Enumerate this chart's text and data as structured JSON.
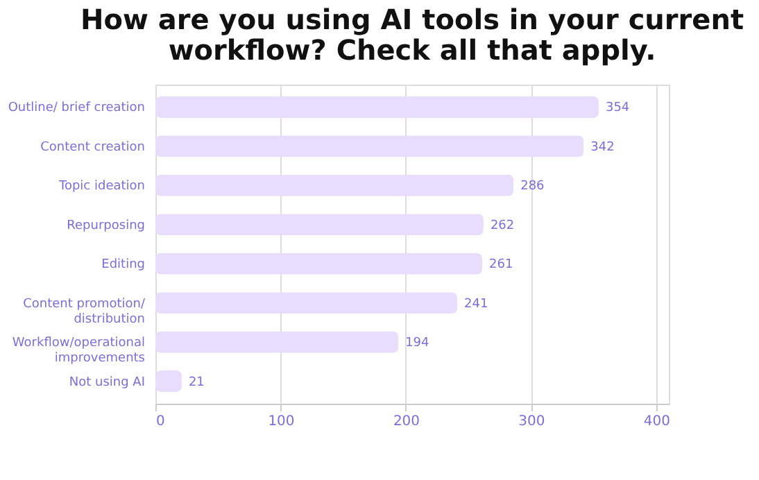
{
  "chart_data": {
    "type": "bar",
    "orientation": "horizontal",
    "title": "How are you using AI tools in your current workflow? Check all that apply.",
    "categories": [
      "Outline/ brief creation",
      "Content creation",
      "Topic ideation",
      "Repurposing",
      "Editing",
      "Content promotion/\ndistribution",
      "Workflow/operational\nimprovements",
      "Not using AI"
    ],
    "values": [
      354,
      342,
      286,
      262,
      261,
      241,
      194,
      21
    ],
    "color": "#e9ddfd",
    "xlim": [
      0,
      410
    ],
    "xticks": [
      0,
      100,
      200,
      300,
      400
    ],
    "grid": "x",
    "data_labels": true
  }
}
